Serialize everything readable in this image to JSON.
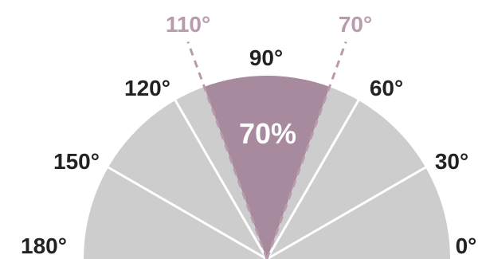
{
  "colors": {
    "background": "#ffffff",
    "sector_fill": "#cdcdcd",
    "highlight_fill": "#a78a9d",
    "divider": "#ffffff",
    "dashed_line": "#b99aae",
    "dashed_text": "#b99aae",
    "label_text": "#222222",
    "percent_text": "#ffffff"
  },
  "diagram": {
    "arc_start_deg": 0,
    "arc_end_deg": 180,
    "divider_angles_deg": [
      30,
      60,
      120,
      150
    ],
    "highlight": {
      "from_deg": 70,
      "to_deg": 110,
      "percent": "70%"
    },
    "angle_labels": [
      {
        "angle": 0,
        "text": "0°"
      },
      {
        "angle": 30,
        "text": "30°"
      },
      {
        "angle": 60,
        "text": "60°"
      },
      {
        "angle": 90,
        "text": "90°"
      },
      {
        "angle": 120,
        "text": "120°"
      },
      {
        "angle": 150,
        "text": "150°"
      },
      {
        "angle": 180,
        "text": "180°"
      }
    ],
    "dashed_labels": [
      {
        "angle": 110,
        "text": "110°"
      },
      {
        "angle": 70,
        "text": "70°"
      }
    ]
  }
}
